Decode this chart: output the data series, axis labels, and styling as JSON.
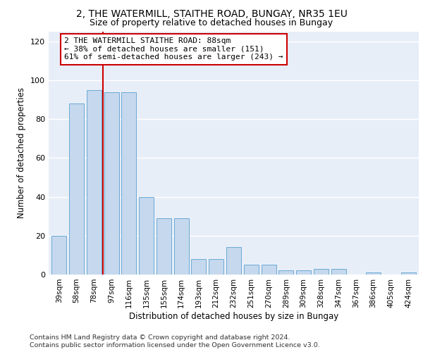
{
  "title1": "2, THE WATERMILL, STAITHE ROAD, BUNGAY, NR35 1EU",
  "title2": "Size of property relative to detached houses in Bungay",
  "xlabel": "Distribution of detached houses by size in Bungay",
  "ylabel": "Number of detached properties",
  "categories": [
    "39sqm",
    "58sqm",
    "78sqm",
    "97sqm",
    "116sqm",
    "135sqm",
    "155sqm",
    "174sqm",
    "193sqm",
    "212sqm",
    "232sqm",
    "251sqm",
    "270sqm",
    "289sqm",
    "309sqm",
    "328sqm",
    "347sqm",
    "367sqm",
    "386sqm",
    "405sqm",
    "424sqm"
  ],
  "values": [
    20,
    88,
    95,
    94,
    94,
    40,
    29,
    29,
    8,
    8,
    14,
    5,
    5,
    2,
    2,
    3,
    3,
    0,
    1,
    0,
    1
  ],
  "bar_color": "#c5d8ed",
  "bar_edge_color": "#6aaad4",
  "vline_x": 2.5,
  "vline_color": "#cc0000",
  "annotation_text": "2 THE WATERMILL STAITHE ROAD: 88sqm\n← 38% of detached houses are smaller (151)\n61% of semi-detached houses are larger (243) →",
  "annotation_box_edge": "#cc0000",
  "ylim": [
    0,
    125
  ],
  "yticks": [
    0,
    20,
    40,
    60,
    80,
    100,
    120
  ],
  "bg_color": "#e8eef8",
  "footer1": "Contains HM Land Registry data © Crown copyright and database right 2024.",
  "footer2": "Contains public sector information licensed under the Open Government Licence v3.0.",
  "title_fontsize": 10,
  "subtitle_fontsize": 9
}
